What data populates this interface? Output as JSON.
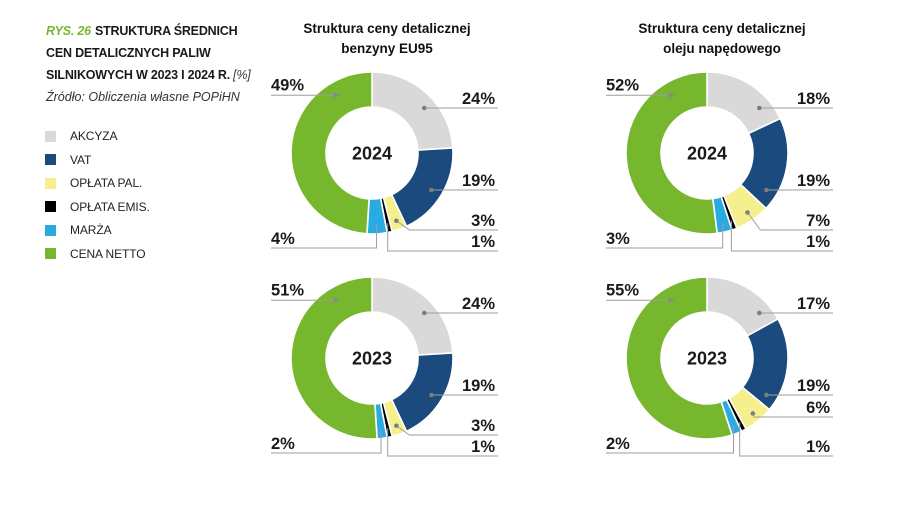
{
  "figure": {
    "number": "RYS. 26",
    "title_line1": "STRUKTURA ŚREDNICH",
    "title_line2": "CEN DETALICZNYCH PALIW",
    "title_line3": "SILNIKOWYCH W 2023 I 2024 R.",
    "unit_note": "[%]",
    "source": "Źródło: Obliczenia własne POPiHN"
  },
  "colors": {
    "accent_green": "#76b72d",
    "text_dark": "#1a1a1a",
    "leader_line": "#9e9e9e",
    "leader_dot": "#7d7d7d",
    "arrow": "#8a8a8a"
  },
  "legend": [
    {
      "label": "AKCYZA",
      "color": "#d9d9d9"
    },
    {
      "label": "VAT",
      "color": "#1b4b7e"
    },
    {
      "label": "OPŁATA PAL.",
      "color": "#f6ef8e"
    },
    {
      "label": "OPŁATA EMIS.",
      "color": "#000000"
    },
    {
      "label": "MARŻA",
      "color": "#29abe2"
    },
    {
      "label": "CENA NETTO",
      "color": "#76b72d"
    }
  ],
  "chart_data": [
    {
      "type": "pie",
      "subtype": "donut",
      "fuel": "benzyna EU95",
      "year": "2024",
      "title_line1": "Struktura ceny detalicznej",
      "title_line2": "benzyny EU95",
      "center_label": "2024",
      "unit": "%",
      "categories": [
        "AKCYZA",
        "VAT",
        "OPŁATA PAL.",
        "OPŁATA EMIS.",
        "MARŻA",
        "CENA NETTO"
      ],
      "values": [
        24,
        19,
        3,
        1,
        4,
        49
      ]
    },
    {
      "type": "pie",
      "subtype": "donut",
      "fuel": "olej napędowy",
      "year": "2024",
      "title_line1": "Struktura ceny detalicznej",
      "title_line2": "oleju napędowego",
      "center_label": "2024",
      "unit": "%",
      "categories": [
        "AKCYZA",
        "VAT",
        "OPŁATA PAL.",
        "OPŁATA EMIS.",
        "MARŻA",
        "CENA NETTO"
      ],
      "values": [
        18,
        19,
        7,
        1,
        3,
        52
      ]
    },
    {
      "type": "pie",
      "subtype": "donut",
      "fuel": "benzyna EU95",
      "year": "2023",
      "center_label": "2023",
      "unit": "%",
      "categories": [
        "AKCYZA",
        "VAT",
        "OPŁATA PAL.",
        "OPŁATA EMIS.",
        "MARŻA",
        "CENA NETTO"
      ],
      "values": [
        24,
        19,
        3,
        1,
        2,
        51
      ]
    },
    {
      "type": "pie",
      "subtype": "donut",
      "fuel": "olej napędowy",
      "year": "2023",
      "center_label": "2023",
      "unit": "%",
      "categories": [
        "AKCYZA",
        "VAT",
        "OPŁATA PAL.",
        "OPŁATA EMIS.",
        "MARŻA",
        "CENA NETTO"
      ],
      "values": [
        17,
        19,
        6,
        1,
        2,
        55
      ]
    }
  ]
}
